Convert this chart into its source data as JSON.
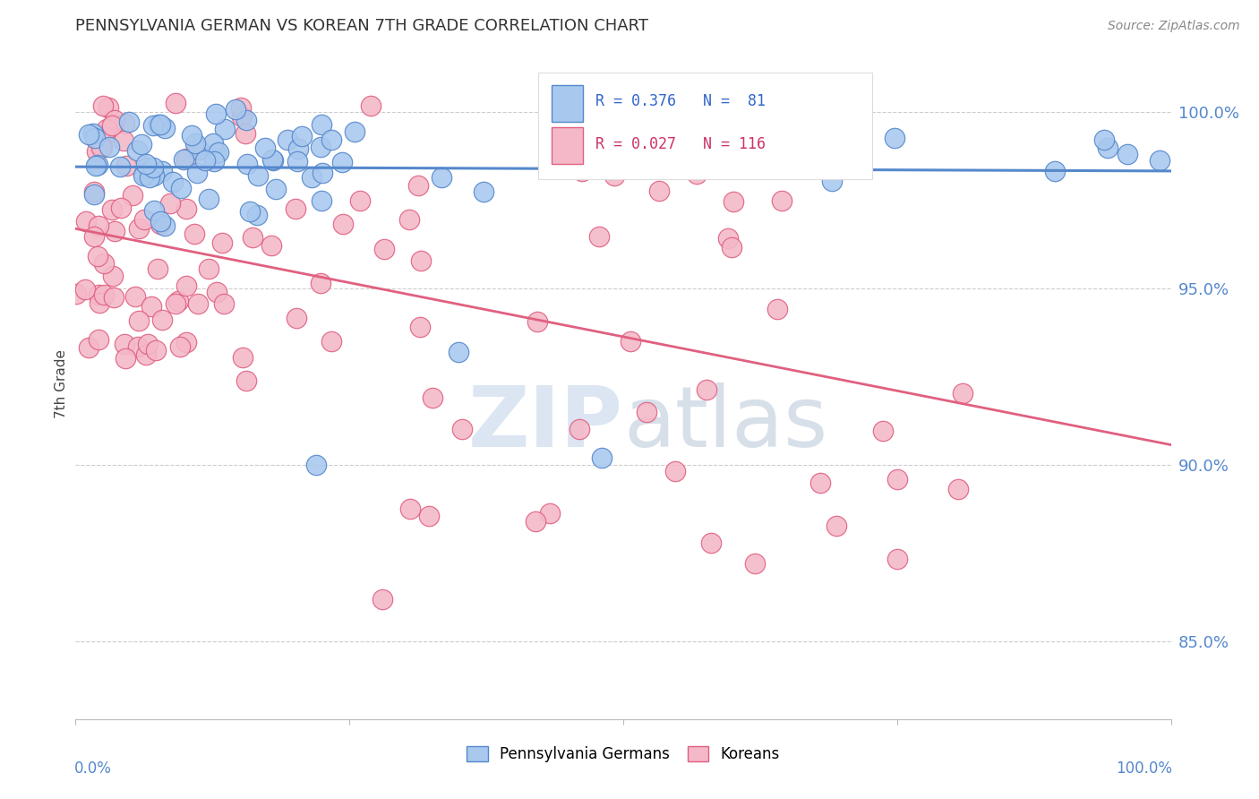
{
  "title": "PENNSYLVANIA GERMAN VS KOREAN 7TH GRADE CORRELATION CHART",
  "source": "Source: ZipAtlas.com",
  "ylabel": "7th Grade",
  "right_yticks": [
    0.85,
    0.9,
    0.95,
    1.0
  ],
  "right_yticklabels": [
    "85.0%",
    "90.0%",
    "95.0%",
    "100.0%"
  ],
  "blue_R": 0.376,
  "blue_N": 81,
  "pink_R": 0.027,
  "pink_N": 116,
  "blue_color": "#a8c8ee",
  "blue_edge_color": "#5588cc",
  "pink_color": "#f4b8c8",
  "pink_edge_color": "#e06080",
  "watermark_zip": "ZIP",
  "watermark_atlas": "atlas",
  "legend_blue_label": "Pennsylvania Germans",
  "legend_pink_label": "Koreans",
  "xlim": [
    0.0,
    1.0
  ],
  "ylim": [
    0.828,
    1.018
  ]
}
